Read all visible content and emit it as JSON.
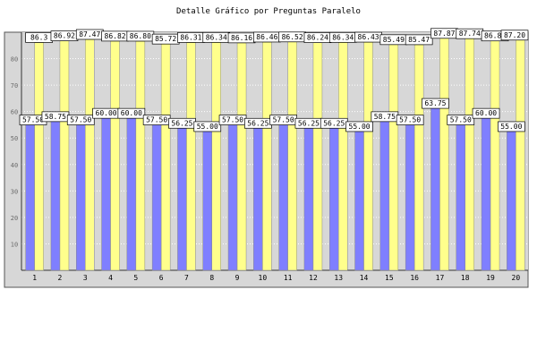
{
  "chart_data": {
    "type": "bar",
    "title": "Detalle Gráfico por Preguntas Paralelo",
    "xlabel": "",
    "ylabel": "",
    "ylim": [
      0,
      90
    ],
    "yticks": [
      10,
      20,
      30,
      40,
      50,
      60,
      70,
      80
    ],
    "grid": true,
    "legend": "none",
    "categories": [
      "1",
      "2",
      "3",
      "4",
      "5",
      "6",
      "7",
      "8",
      "9",
      "10",
      "11",
      "12",
      "13",
      "14",
      "15",
      "16",
      "17",
      "18",
      "19",
      "20"
    ],
    "series": [
      {
        "color": "#7f7fff",
        "values": [
          57.5,
          58.75,
          57.5,
          60.0,
          60.0,
          57.5,
          56.25,
          55.0,
          57.5,
          56.25,
          57.5,
          56.25,
          56.25,
          55.0,
          58.75,
          57.5,
          63.75,
          57.5,
          60.0,
          55.0
        ],
        "labels": [
          "57.50",
          "58.75",
          "57.50",
          "60.00",
          "60.00",
          "57.50",
          "56.25",
          "55.00",
          "57.50",
          "56.25",
          "57.50",
          "56.25",
          "56.25",
          "55.00",
          "58.75",
          "57.50",
          "63.75",
          "57.50",
          "60.00",
          "55.00"
        ]
      },
      {
        "color": "#ffff8c",
        "values": [
          86.3,
          86.92,
          87.47,
          86.82,
          86.8,
          85.72,
          86.31,
          86.34,
          86.16,
          86.46,
          86.52,
          86.24,
          86.34,
          86.43,
          85.49,
          85.47,
          87.87,
          87.74,
          86.88,
          87.2
        ],
        "labels": [
          "86.3",
          "86.92",
          "87.47",
          "86.82",
          "86.80",
          "85.72",
          "86.31",
          "86.34",
          "86.16",
          "86.46",
          "86.52",
          "86.24",
          "86.34",
          "86.43",
          "85.49",
          "85.47",
          "87.87",
          "87.74",
          "86.88",
          "87.20"
        ]
      }
    ],
    "colors": {
      "plot_bg": "#d7d7d7",
      "frame_bg": "#d7d7d7",
      "grid": "#ffffff",
      "label_bg": "#ffffff"
    }
  }
}
